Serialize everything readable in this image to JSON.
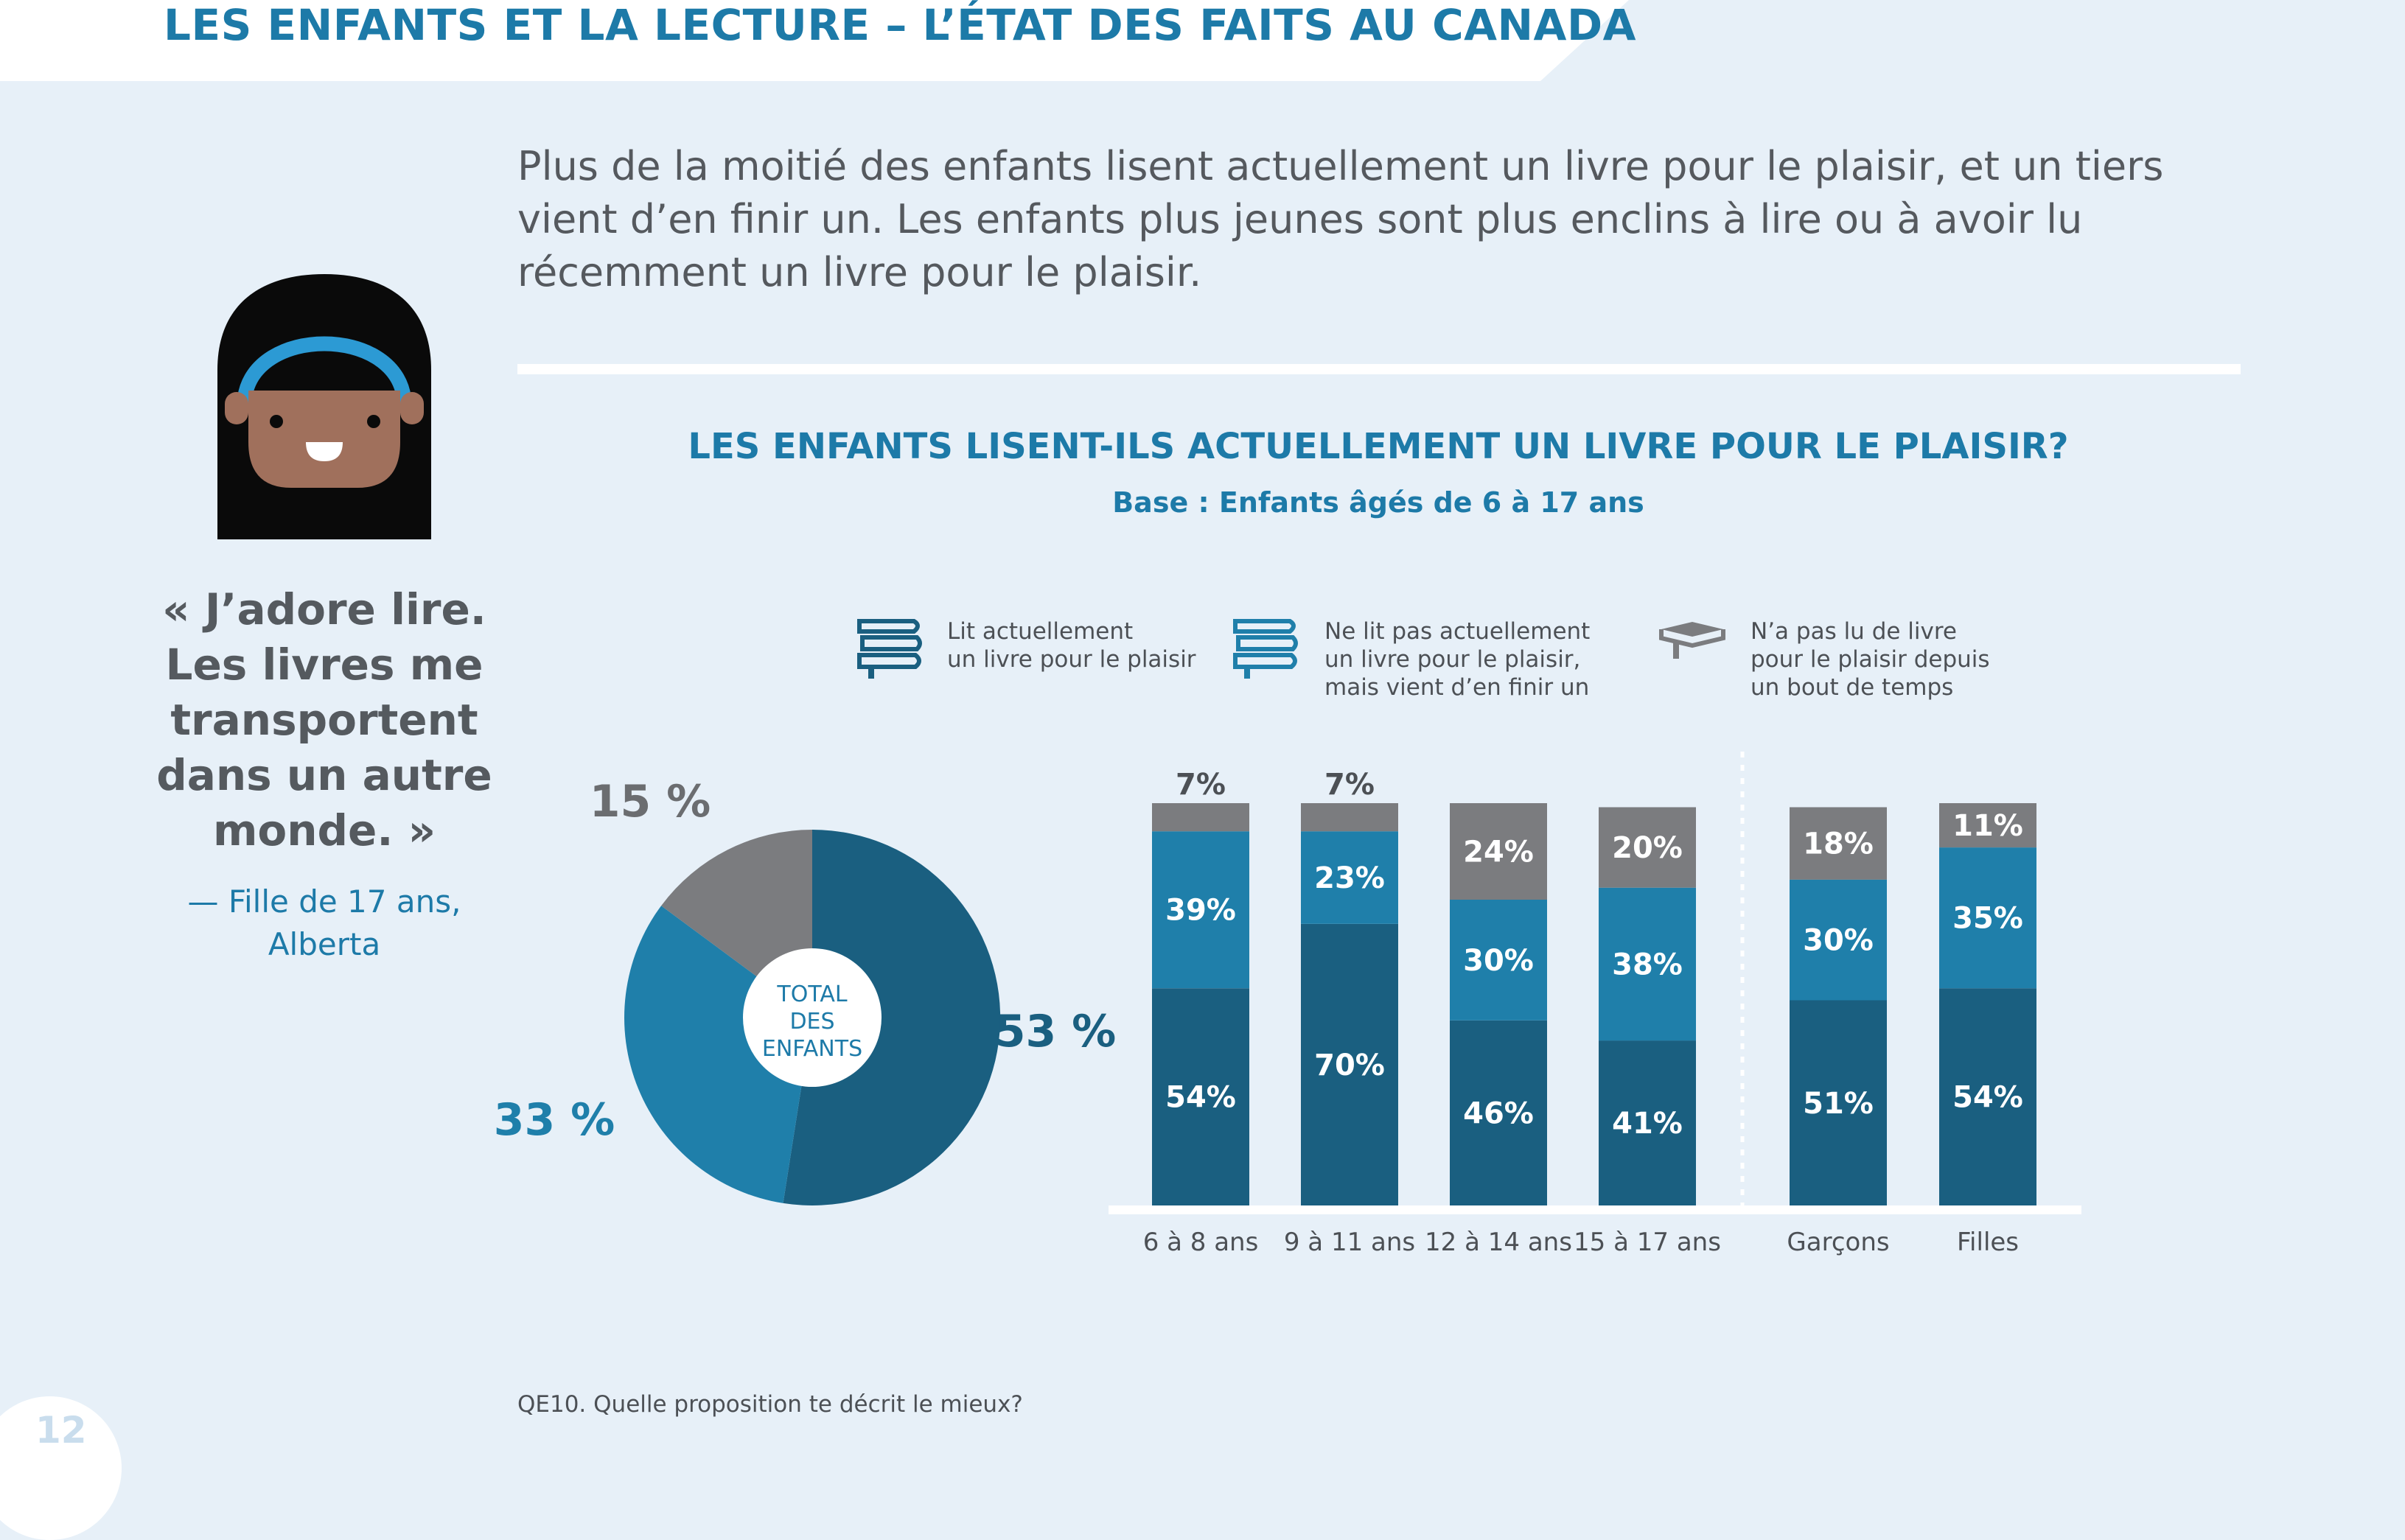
{
  "header": {
    "title": "LES ENFANTS ET LA LECTURE – L’ÉTAT DES FAITS AU CANADA"
  },
  "intro": {
    "text": "Plus de la moitié des enfants lisent actuellement un livre pour le plaisir, et un tiers vient d’en finir un. Les enfants plus jeunes sont plus enclins à lire ou à avoir lu récemment un livre pour le plaisir."
  },
  "quote": {
    "lines": [
      "« J’adore lire.",
      "Les livres me",
      "transportent",
      "dans un autre",
      "monde. »"
    ],
    "attribution": [
      "— Fille de 17 ans,",
      "Alberta"
    ]
  },
  "legend": [
    {
      "icon": "books-stack-icon",
      "lines": [
        "Lit actuellement",
        "un livre pour le plaisir"
      ],
      "color": "#1a5f80"
    },
    {
      "icon": "books-stack-icon",
      "lines": [
        "Ne lit pas actuellement",
        "un livre pour le plaisir,",
        "mais vient d’en finir un"
      ],
      "color": "#1f7faa"
    },
    {
      "icon": "open-book-icon",
      "lines": [
        "N’a pas lu de livre",
        "pour le plaisir depuis",
        "un bout de temps"
      ],
      "color": "#7b7c7f"
    }
  ],
  "footnote": "QE10. Quelle proposition te décrit le mieux?",
  "page_number": "12",
  "colors": {
    "dark": "#1a5f80",
    "mid": "#1f7faa",
    "grey": "#7b7c7f",
    "accent": "#1d7aa8",
    "background": "#e7f0f8"
  },
  "chart_data": [
    {
      "type": "pie",
      "title": "LES ENFANTS LISENT-ILS ACTUELLEMENT UN LIVRE POUR LE PLAISIR?",
      "subtitle": "Base : Enfants âgés de 6 à 17 ans",
      "center_label": [
        "TOTAL",
        "DES",
        "ENFANTS"
      ],
      "slices": [
        {
          "name": "Lit actuellement un livre pour le plaisir",
          "value": 53,
          "label": "53 %",
          "color": "#1a5f80"
        },
        {
          "name": "Ne lit pas actuellement un livre pour le plaisir, mais vient d’en finir un",
          "value": 33,
          "label": "33 %",
          "color": "#1f7faa"
        },
        {
          "name": "N’a pas lu de livre pour le plaisir depuis un bout de temps",
          "value": 15,
          "label": "15 %",
          "color": "#7b7c7f"
        }
      ]
    },
    {
      "type": "bar",
      "stacked": true,
      "categories": [
        "6 à 8 ans",
        "9 à 11 ans",
        "12 à 14 ans",
        "15 à 17 ans",
        "Garçons",
        "Filles"
      ],
      "group_separator_after": 3,
      "ylim": [
        0,
        100
      ],
      "series": [
        {
          "name": "Lit actuellement un livre pour le plaisir",
          "values": [
            54,
            70,
            46,
            41,
            51,
            54
          ],
          "labels": [
            "54%",
            "70%",
            "46%",
            "41%",
            "51%",
            "54%"
          ],
          "color": "#1a5f80"
        },
        {
          "name": "Ne lit pas actuellement un livre pour le plaisir, mais vient d’en finir un",
          "values": [
            39,
            23,
            30,
            38,
            30,
            35
          ],
          "labels": [
            "39%",
            "23%",
            "30%",
            "38%",
            "30%",
            "35%"
          ],
          "color": "#1f7faa"
        },
        {
          "name": "N’a pas lu de livre pour le plaisir depuis un bout de temps",
          "values": [
            7,
            7,
            24,
            20,
            18,
            11
          ],
          "labels": [
            "7%",
            "7%",
            "24%",
            "20%",
            "18%",
            "11%"
          ],
          "color": "#7b7c7f"
        }
      ]
    }
  ]
}
